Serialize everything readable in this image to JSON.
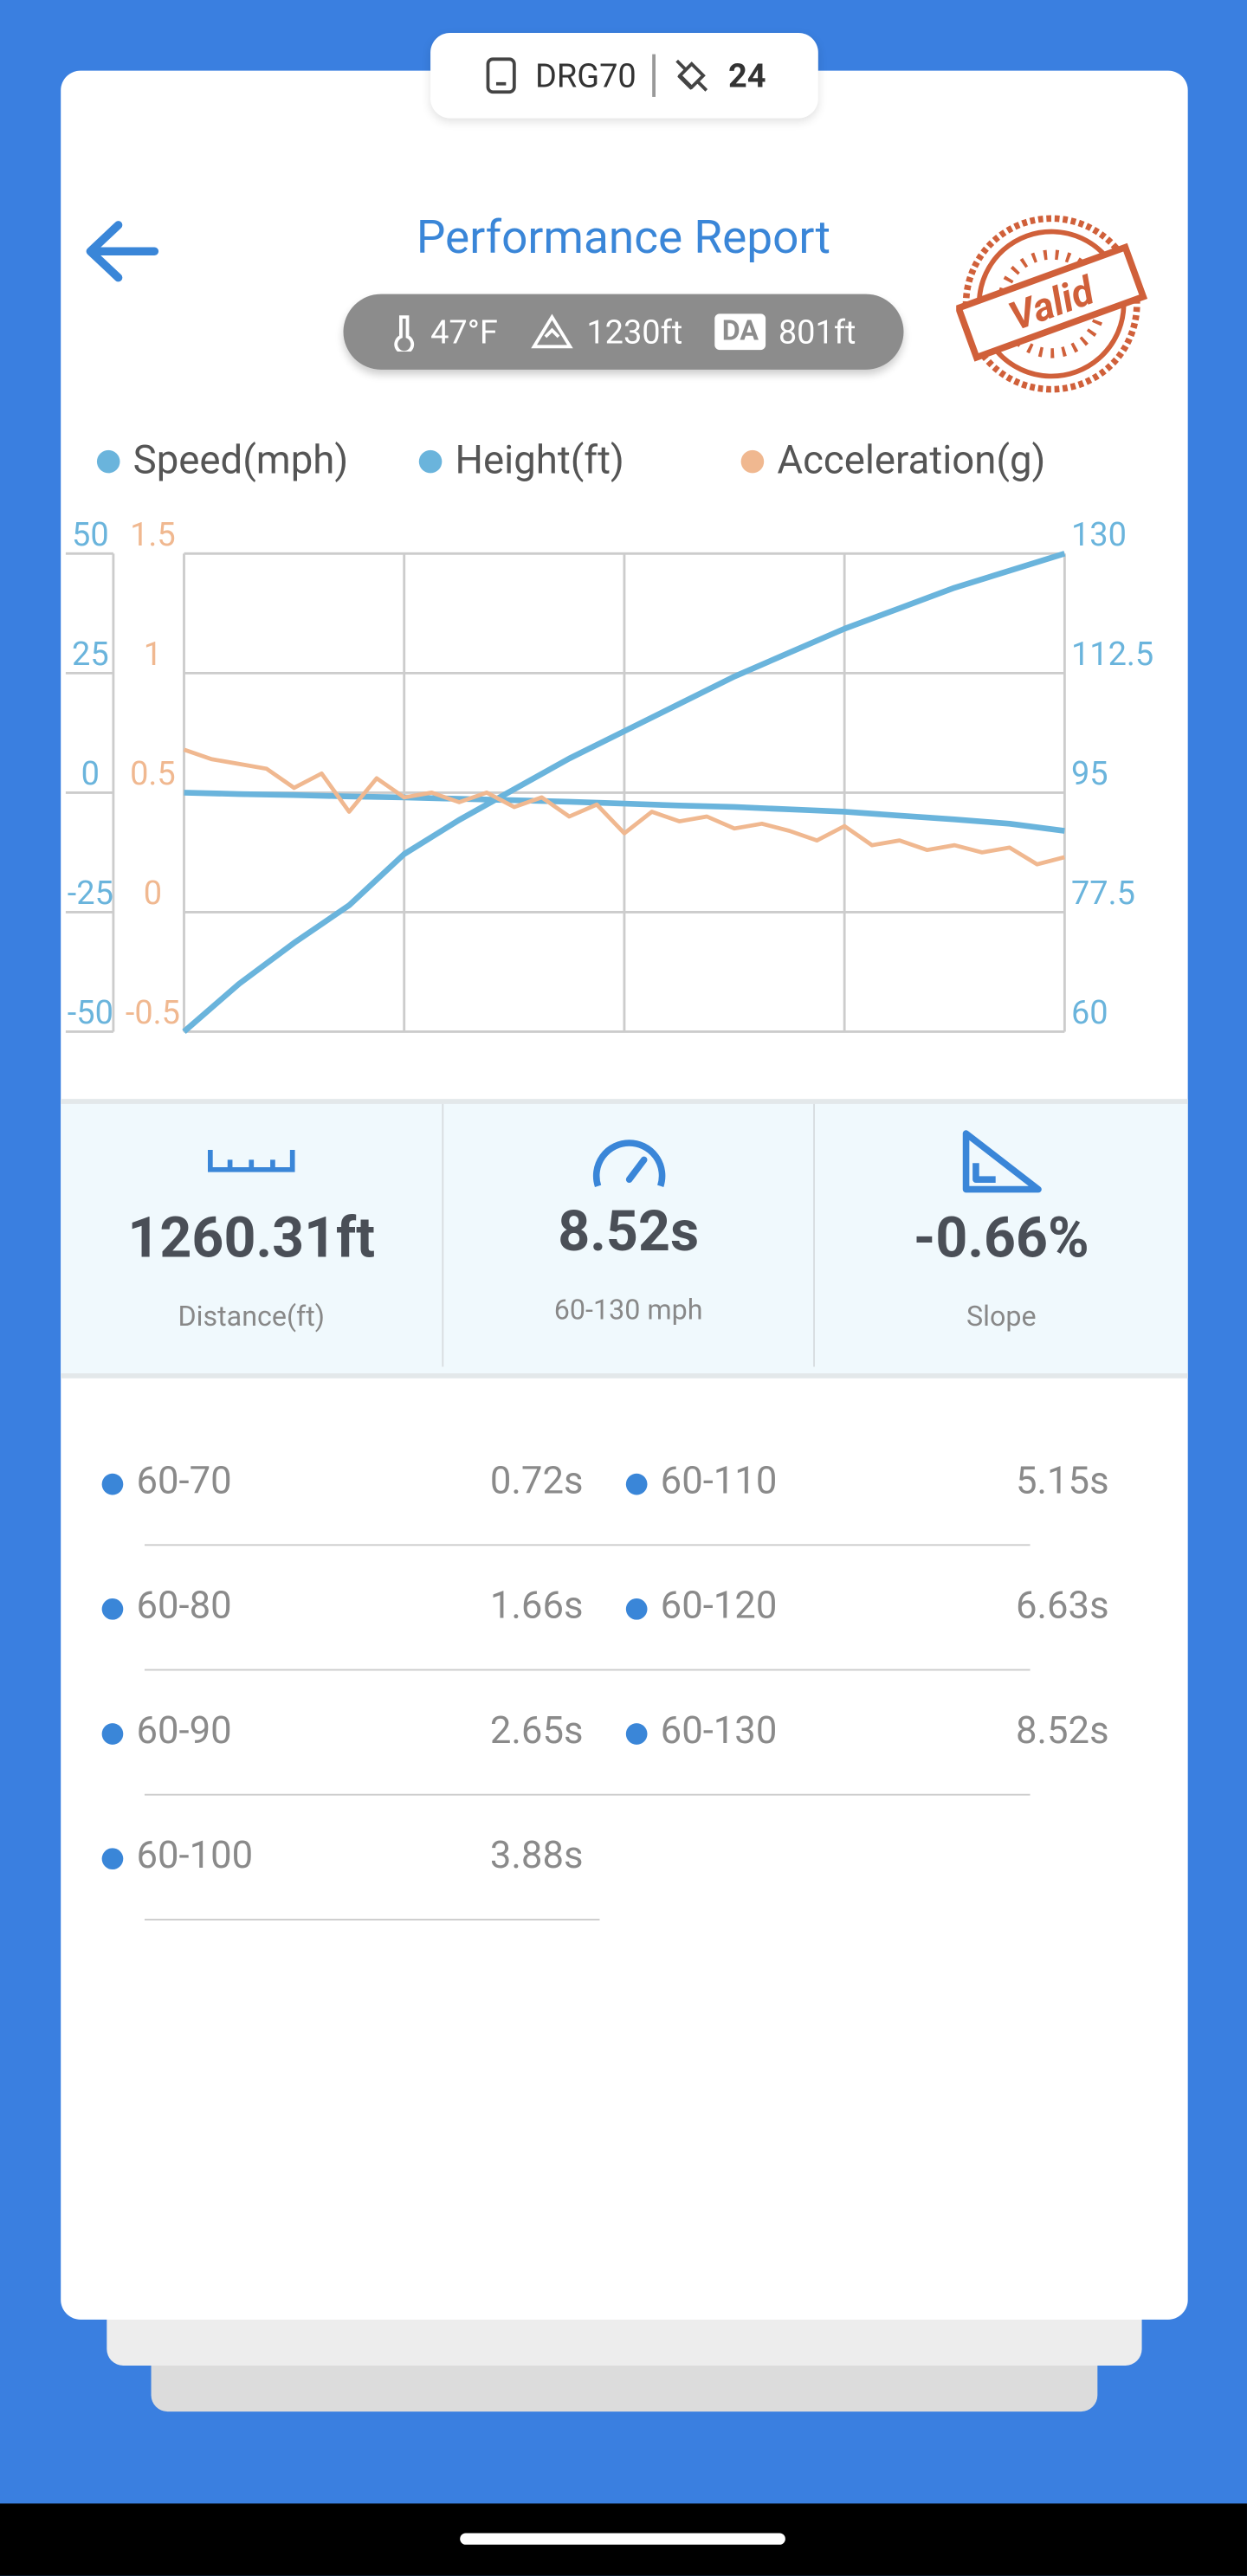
{
  "header": {
    "device": "DRG70",
    "count": "24"
  },
  "title": "Performance Report",
  "conditions": {
    "temperature": "47°F",
    "elevation": "1230ft",
    "da_label": "DA",
    "density_altitude": "801ft"
  },
  "stamp": "Valid",
  "chart_data": {
    "type": "line",
    "series": [
      {
        "name": "Speed(mph)",
        "color": "#6ab4dc",
        "axis": "y2",
        "values": [
          60,
          67,
          73,
          78.5,
          86,
          91,
          95.5,
          100,
          104,
          108,
          112,
          115.5,
          119,
          122,
          125,
          127.5,
          130
        ]
      },
      {
        "name": "Height(ft)",
        "color": "#6ab4dc",
        "values": [
          0,
          -0.3,
          -0.5,
          -0.8,
          -1,
          -1.3,
          -1.6,
          -1.9,
          -2.3,
          -2.7,
          -3,
          -3.5,
          -4,
          -4.8,
          -5.6,
          -6.5,
          -8
        ]
      },
      {
        "name": "Acceleration(g)",
        "color": "#f0b890",
        "axis": "y3",
        "values": [
          0.68,
          0.64,
          0.62,
          0.6,
          0.52,
          0.58,
          0.42,
          0.56,
          0.48,
          0.5,
          0.46,
          0.5,
          0.44,
          0.48,
          0.4,
          0.45,
          0.33,
          0.42,
          0.38,
          0.4,
          0.35,
          0.37,
          0.34,
          0.3,
          0.36,
          0.28,
          0.3,
          0.26,
          0.28,
          0.25,
          0.27,
          0.2,
          0.23
        ]
      }
    ],
    "ylim": [
      -50,
      50
    ],
    "yticks": [
      -50,
      -25,
      0,
      25,
      50
    ],
    "y2lim": [
      60,
      130
    ],
    "y2ticks": [
      60,
      77.5,
      95,
      112.5,
      130
    ],
    "y3lim": [
      -0.5,
      1.5
    ],
    "y3ticks": [
      -0.5,
      0,
      0.5,
      1,
      1.5
    ],
    "grid": true
  },
  "stats": [
    {
      "value": "1260.31ft",
      "label": "Distance(ft)"
    },
    {
      "value": "8.52s",
      "label": "60-130 mph"
    },
    {
      "value": "-0.66%",
      "label": "Slope"
    }
  ],
  "splits": [
    {
      "label": "60-70",
      "value": "0.72s"
    },
    {
      "label": "60-80",
      "value": "1.66s"
    },
    {
      "label": "60-90",
      "value": "2.65s"
    },
    {
      "label": "60-100",
      "value": "3.88s"
    },
    {
      "label": "60-110",
      "value": "5.15s"
    },
    {
      "label": "60-120",
      "value": "6.63s"
    },
    {
      "label": "60-130",
      "value": "8.52s"
    }
  ]
}
